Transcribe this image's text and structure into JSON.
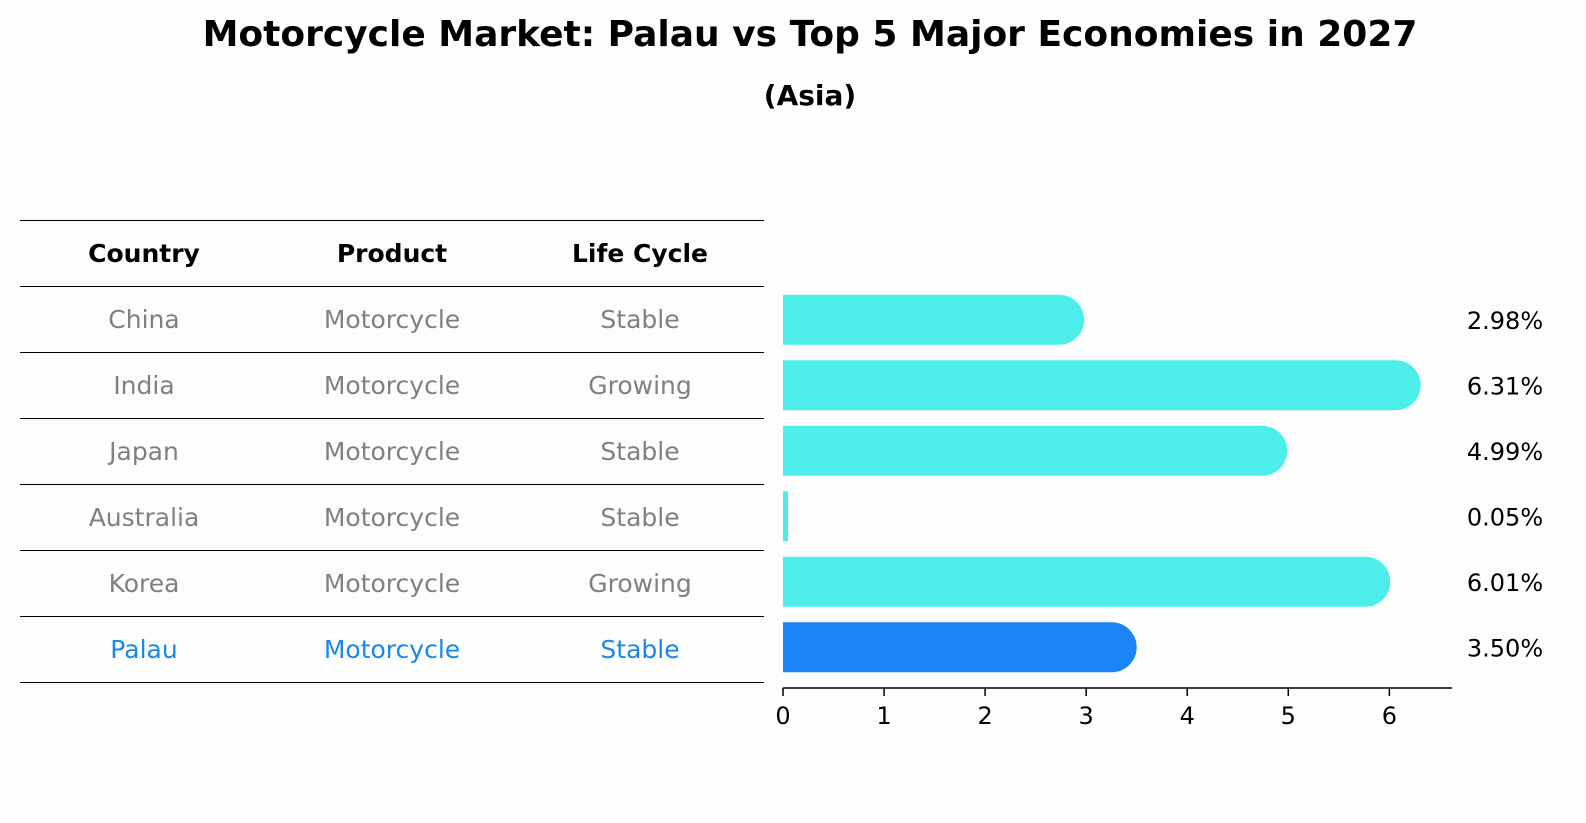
{
  "colors": {
    "bar": "#4deeea",
    "highlight_bar": "#1a84f5",
    "highlight_text": "#1a88e8",
    "muted_text": "#808080"
  },
  "chart_data": {
    "type": "bar",
    "orientation": "horizontal",
    "title": "Motorcycle Market: Palau vs Top 5 Major Economies in 2027",
    "subtitle": "(Asia)",
    "table_headers": [
      "Country",
      "Product",
      "Life Cycle"
    ],
    "rows": [
      {
        "country": "China",
        "product": "Motorcycle",
        "life_cycle": "Stable",
        "value": 2.98,
        "label": "2.98%",
        "highlight": false
      },
      {
        "country": "India",
        "product": "Motorcycle",
        "life_cycle": "Growing",
        "value": 6.31,
        "label": "6.31%",
        "highlight": false
      },
      {
        "country": "Japan",
        "product": "Motorcycle",
        "life_cycle": "Stable",
        "value": 4.99,
        "label": "4.99%",
        "highlight": false
      },
      {
        "country": "Australia",
        "product": "Motorcycle",
        "life_cycle": "Stable",
        "value": 0.05,
        "label": "0.05%",
        "highlight": false
      },
      {
        "country": "Korea",
        "product": "Motorcycle",
        "life_cycle": "Growing",
        "value": 6.01,
        "label": "6.01%",
        "highlight": false
      },
      {
        "country": "Palau",
        "product": "Motorcycle",
        "life_cycle": "Stable",
        "value": 3.5,
        "label": "3.50%",
        "highlight": true
      }
    ],
    "xticks": [
      0,
      1,
      2,
      3,
      4,
      5,
      6
    ],
    "xlim": [
      0,
      6.62
    ],
    "grid": false,
    "legend": "none"
  }
}
